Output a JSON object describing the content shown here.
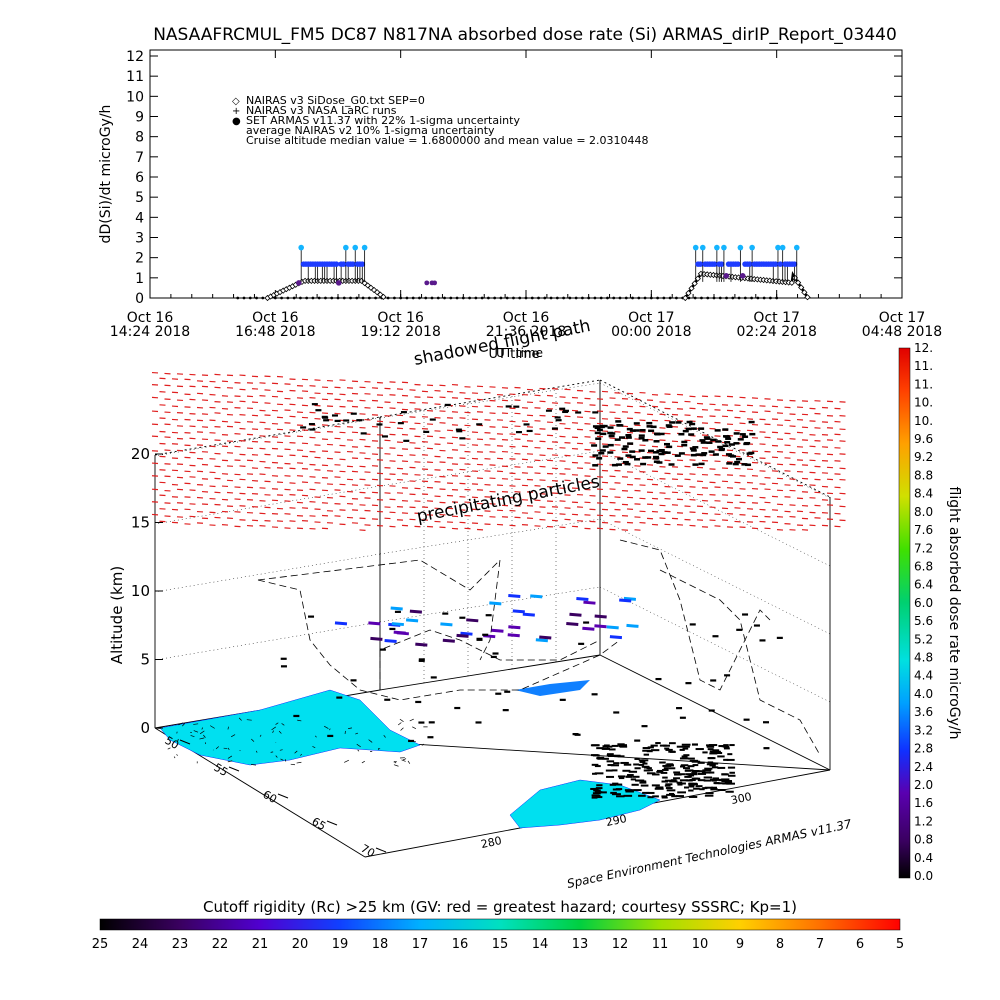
{
  "title": "NASAAFRCMUL_FM5 DC87 N817NA absorbed dose rate (Si) ARMAS_dirIP_Report_03440",
  "chart_data": [
    {
      "type": "scatter",
      "ylabel": "dD(Si)/dt microGy/h",
      "xlabel": "UT time",
      "ylim": [
        0,
        12
      ],
      "yticks": [
        "0",
        "1",
        "2",
        "3",
        "4",
        "5",
        "6",
        "7",
        "8",
        "9",
        "10",
        "11",
        "12"
      ],
      "xticks": [
        {
          "l1": "Oct 16",
          "l2": "14:24 2018"
        },
        {
          "l1": "Oct 16",
          "l2": "16:48 2018"
        },
        {
          "l1": "Oct 16",
          "l2": "19:12 2018"
        },
        {
          "l1": "Oct 16",
          "l2": "21:36 2018"
        },
        {
          "l1": "Oct 17",
          "l2": "00:00 2018"
        },
        {
          "l1": "Oct 17",
          "l2": "02:24 2018"
        },
        {
          "l1": "Oct 17",
          "l2": "04:48 2018"
        }
      ],
      "xlim_hours": [
        0,
        14.4
      ],
      "legend": [
        {
          "symbol": "◇",
          "text": "NAIRAS v3 SiDose_G0.txt SEP=0"
        },
        {
          "symbol": "+",
          "text": "NAIRAS v3 NASA LaRC runs"
        },
        {
          "symbol": "●",
          "text": "SET ARMAS v11.37 with 22% 1-sigma uncertainty"
        },
        {
          "symbol": "",
          "text": "average NAIRAS v2 10% 1-sigma uncertainty"
        },
        {
          "symbol": "",
          "text": "Cruise altitude median value = 1.6800000 and mean value = 2.0310448"
        }
      ],
      "flights": [
        {
          "name": "",
          "start": 2.25,
          "climb_end": 2.95,
          "descent_start": 4.05,
          "end": 4.5,
          "nairas_cruise": 0.85,
          "armas_cruise": 1.68,
          "armas_high": 2.5
        },
        {
          "name": "",
          "start": 10.25,
          "climb_end": 10.55,
          "descent_start": 12.3,
          "end": 12.6,
          "nairas_cruise": 1.2,
          "armas_cruise": 1.68,
          "armas_high": 2.5
        }
      ]
    },
    {
      "type": "scatter3d",
      "zlabel": "Altitude (km)",
      "zticks": [
        "0",
        "5",
        "10",
        "15",
        "20"
      ],
      "zlim": [
        0,
        22
      ],
      "lat_ticks": [
        "50",
        "55",
        "60",
        "65",
        "70"
      ],
      "lon_ticks": [
        "280",
        "290",
        "300"
      ],
      "annotations": [
        "shadowed flight path",
        "precipitating particles",
        "UT time"
      ],
      "colorbar": {
        "label": "flight absorbed dose rate microGy/h",
        "ticks": [
          "0.0",
          "0.4",
          "0.8",
          "1.2",
          "1.6",
          "2.0",
          "2.4",
          "2.8",
          "3.2",
          "3.6",
          "4.0",
          "4.4",
          "4.8",
          "5.2",
          "5.6",
          "6.0",
          "6.4",
          "6.8",
          "7.2",
          "7.6",
          "8.0",
          "8.4",
          "8.8",
          "9.2",
          "9.6",
          "10.",
          "10.",
          "11.",
          "11.",
          "12."
        ]
      },
      "credit": "Space Environment Technologies ARMAS v11.37"
    },
    {
      "type": "colorbar",
      "title": "Cutoff rigidity (Rc) >25 km (GV: red = greatest hazard; courtesy SSSRC; Kp=1)",
      "ticks": [
        "25",
        "24",
        "23",
        "22",
        "21",
        "20",
        "19",
        "18",
        "17",
        "16",
        "15",
        "14",
        "13",
        "12",
        "11",
        "10",
        "9",
        "8",
        "7",
        "6",
        "5"
      ]
    }
  ],
  "colors": {
    "nairas": "#000000",
    "armas_low": "#1e3cff",
    "armas_high": "#14b4ff",
    "armas_dark": "#5a1a8c",
    "particles": "#e02020",
    "map": "#00e0f0"
  }
}
